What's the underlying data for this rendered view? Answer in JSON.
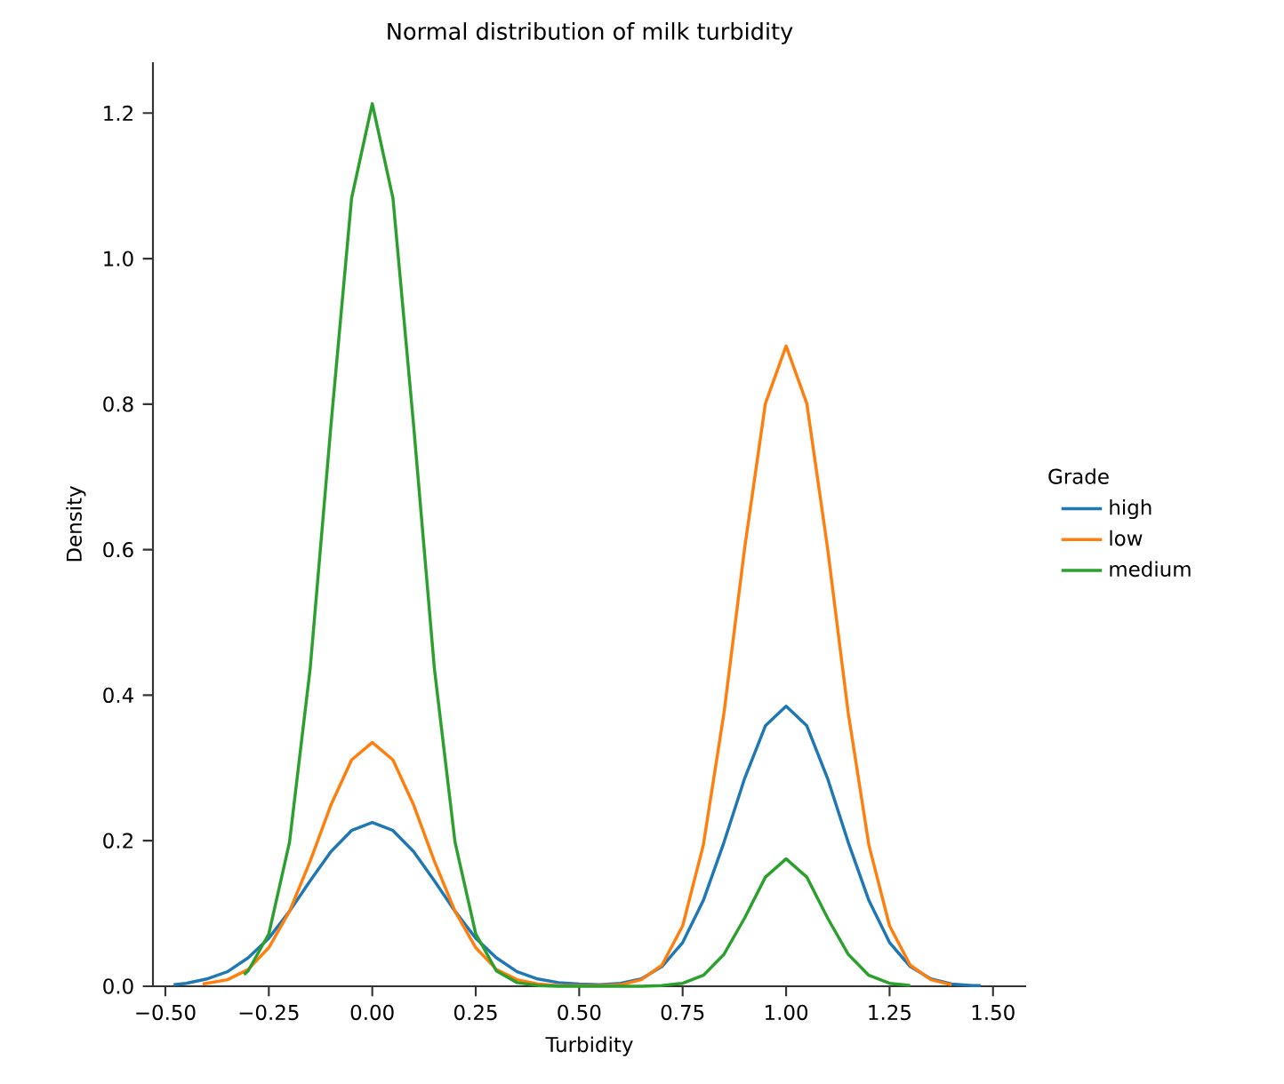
{
  "chart_data": {
    "type": "line",
    "title": "Normal distribution of milk turbidity",
    "xlabel": "Turbidity",
    "ylabel": "Density",
    "legend_title": "Grade",
    "legend": "right",
    "grid": false,
    "xlim": [
      -0.53,
      1.58
    ],
    "ylim": [
      0,
      1.27
    ],
    "xticks": [
      {
        "value": -0.5,
        "label": "−0.50"
      },
      {
        "value": -0.25,
        "label": "−0.25"
      },
      {
        "value": 0,
        "label": "0.00"
      },
      {
        "value": 0.25,
        "label": "0.25"
      },
      {
        "value": 0.5,
        "label": "0.50"
      },
      {
        "value": 0.75,
        "label": "0.75"
      },
      {
        "value": 1,
        "label": "1.00"
      },
      {
        "value": 1.25,
        "label": "1.25"
      },
      {
        "value": 1.5,
        "label": "1.50"
      }
    ],
    "yticks": [
      {
        "value": 0,
        "label": "0.0"
      },
      {
        "value": 0.2,
        "label": "0.2"
      },
      {
        "value": 0.4,
        "label": "0.4"
      },
      {
        "value": 0.6,
        "label": "0.6"
      },
      {
        "value": 0.8,
        "label": "0.8"
      },
      {
        "value": 1,
        "label": "1.0"
      },
      {
        "value": 1.2,
        "label": "1.2"
      }
    ],
    "series": [
      {
        "name": "high",
        "color": "#1f77b4",
        "x": [
          -0.48,
          -0.45,
          -0.4,
          -0.35,
          -0.3,
          -0.25,
          -0.2,
          -0.15,
          -0.1,
          -0.05,
          0,
          0.05,
          0.1,
          0.15,
          0.2,
          0.25,
          0.3,
          0.35,
          0.4,
          0.45,
          0.5,
          0.55,
          0.6,
          0.65,
          0.7,
          0.75,
          0.8,
          0.85,
          0.9,
          0.95,
          1,
          1.05,
          1.1,
          1.15,
          1.2,
          1.25,
          1.3,
          1.35,
          1.4,
          1.45,
          1.47
        ],
        "values": [
          0.002,
          0.004,
          0.01,
          0.02,
          0.039,
          0.066,
          0.103,
          0.145,
          0.185,
          0.214,
          0.225,
          0.214,
          0.185,
          0.145,
          0.103,
          0.066,
          0.039,
          0.02,
          0.01,
          0.005,
          0.003,
          0.002,
          0.004,
          0.01,
          0.027,
          0.06,
          0.118,
          0.198,
          0.286,
          0.358,
          0.385,
          0.358,
          0.286,
          0.198,
          0.118,
          0.06,
          0.027,
          0.01,
          0.003,
          0.001,
          0.001
        ]
      },
      {
        "name": "low",
        "color": "#ff7f0e",
        "x": [
          -0.41,
          -0.35,
          -0.3,
          -0.25,
          -0.2,
          -0.15,
          -0.1,
          -0.05,
          0,
          0.05,
          0.1,
          0.15,
          0.2,
          0.25,
          0.3,
          0.35,
          0.4,
          0.45,
          0.5,
          0.55,
          0.6,
          0.65,
          0.7,
          0.75,
          0.8,
          0.85,
          0.9,
          0.95,
          1,
          1.05,
          1.1,
          1.15,
          1.2,
          1.25,
          1.3,
          1.35,
          1.4
        ],
        "values": [
          0.003,
          0.009,
          0.023,
          0.053,
          0.103,
          0.172,
          0.249,
          0.311,
          0.335,
          0.311,
          0.249,
          0.172,
          0.103,
          0.053,
          0.023,
          0.009,
          0.003,
          0.001,
          0.001,
          0.001,
          0.002,
          0.009,
          0.029,
          0.083,
          0.194,
          0.376,
          0.603,
          0.801,
          0.88,
          0.801,
          0.603,
          0.376,
          0.194,
          0.083,
          0.029,
          0.009,
          0.002
        ]
      },
      {
        "name": "medium",
        "color": "#2ca02c",
        "x": [
          -0.31,
          -0.3,
          -0.25,
          -0.2,
          -0.15,
          -0.1,
          -0.05,
          0,
          0.05,
          0.1,
          0.15,
          0.2,
          0.25,
          0.3,
          0.35,
          0.4,
          0.45,
          0.5,
          0.55,
          0.6,
          0.65,
          0.7,
          0.75,
          0.8,
          0.85,
          0.9,
          0.95,
          1,
          1.05,
          1.1,
          1.15,
          1.2,
          1.25,
          1.3
        ],
        "values": [
          0.016,
          0.021,
          0.072,
          0.198,
          0.437,
          0.77,
          1.083,
          1.213,
          1.083,
          0.77,
          0.437,
          0.198,
          0.072,
          0.021,
          0.005,
          0.001,
          0,
          0,
          0,
          0,
          0,
          0.001,
          0.004,
          0.015,
          0.044,
          0.094,
          0.15,
          0.175,
          0.15,
          0.094,
          0.044,
          0.015,
          0.004,
          0.001
        ]
      }
    ]
  }
}
